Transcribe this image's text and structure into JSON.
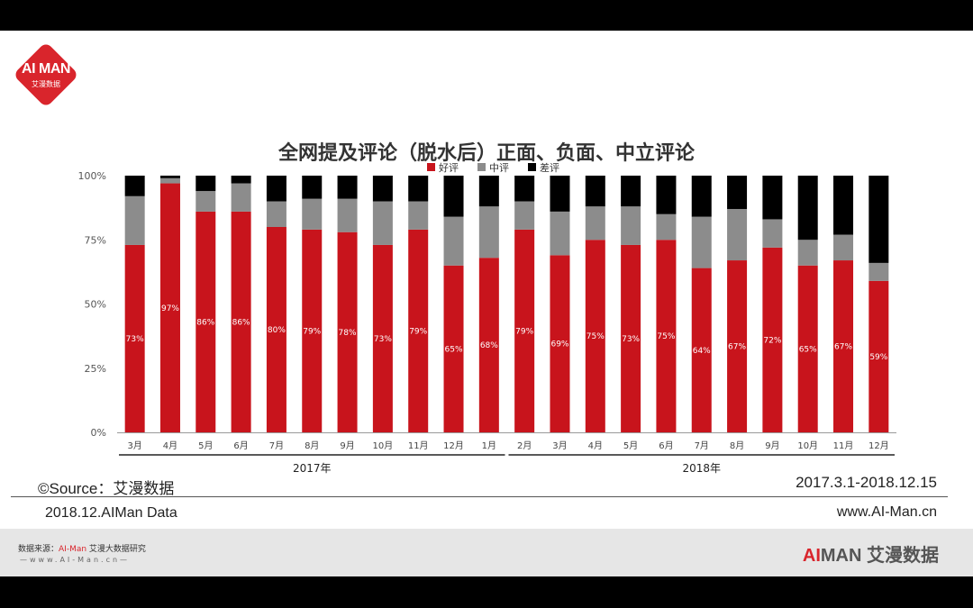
{
  "logo": {
    "text": "AI MAN",
    "subtext": "艾漫数据"
  },
  "chart_data": {
    "type": "bar",
    "stacked": true,
    "title": "全网提及评论（脱水后）正面、负面、中立评论",
    "categories": [
      "3月",
      "4月",
      "5月",
      "6月",
      "7月",
      "8月",
      "9月",
      "10月",
      "11月",
      "12月",
      "1月",
      "2月",
      "3月",
      "4月",
      "5月",
      "6月",
      "7月",
      "8月",
      "9月",
      "10月",
      "11月",
      "12月"
    ],
    "groups": [
      {
        "label": "2017年",
        "from": 0,
        "to": 10
      },
      {
        "label": "2018年",
        "from": 11,
        "to": 21
      }
    ],
    "series": [
      {
        "name": "好评",
        "color": "#c8141c",
        "values": [
          73,
          97,
          86,
          86,
          80,
          79,
          78,
          73,
          79,
          65,
          68,
          79,
          69,
          75,
          73,
          75,
          64,
          67,
          72,
          65,
          67,
          59
        ],
        "labels": [
          "73%",
          "97%",
          "86%",
          "86%",
          "80%",
          "79%",
          "78%",
          "73%",
          "79%",
          "65%",
          "68%",
          "79%",
          "69%",
          "75%",
          "73%",
          "75%",
          "64%",
          "67%",
          "72%",
          "65%",
          "67%",
          "59%"
        ]
      },
      {
        "name": "中评",
        "color": "#8c8c8c",
        "values": [
          19,
          2,
          8,
          11,
          10,
          12,
          13,
          17,
          11,
          19,
          20,
          11,
          17,
          13,
          15,
          10,
          20,
          20,
          11,
          10,
          10,
          7
        ]
      },
      {
        "name": "差评",
        "color": "#000000",
        "values": [
          8,
          1,
          6,
          3,
          10,
          9,
          9,
          10,
          10,
          16,
          12,
          10,
          14,
          12,
          12,
          15,
          16,
          13,
          17,
          25,
          23,
          34
        ]
      }
    ],
    "yticks": [
      "0%",
      "25%",
      "50%",
      "75%",
      "100%"
    ],
    "ylim": [
      0,
      100
    ],
    "legend": "top-center",
    "grid": false
  },
  "footer_info": {
    "source": "©Source：艾漫数据",
    "date_range": "2017.3.1-2018.12.15",
    "data_line": "2018.12.AIMan Data",
    "site": "www.AI-Man.cn"
  },
  "footer_bar": {
    "src_prefix": "数据来源：",
    "src_brand": "AI-Man",
    "src_suffix": " 艾漫大数据研究",
    "url": "—www.AI-Man.cn—",
    "brand_ai": "AI",
    "brand_man": "MAN",
    "brand_cn": "艾漫数据"
  }
}
